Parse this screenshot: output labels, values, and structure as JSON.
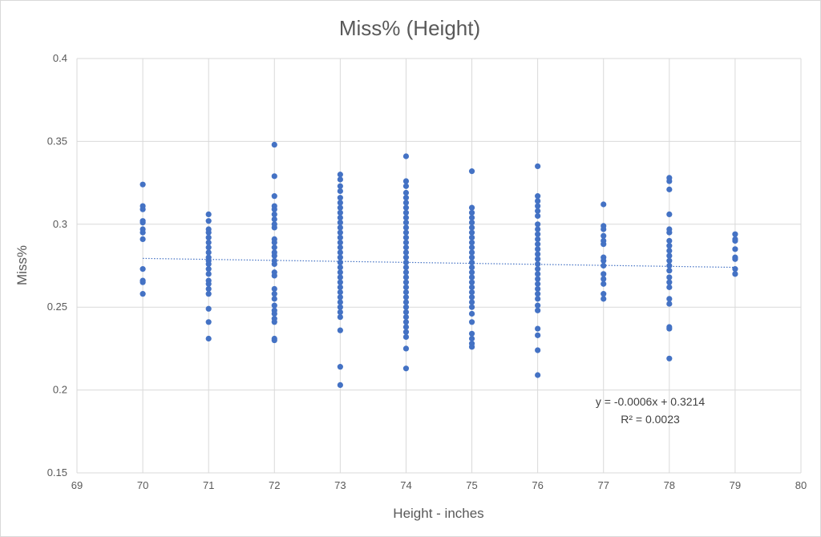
{
  "chart_data": {
    "type": "scatter",
    "title": "Miss% (Height)",
    "xlabel": "Height - inches",
    "ylabel": "Miss%",
    "xlim": [
      69,
      80
    ],
    "ylim": [
      0.15,
      0.4
    ],
    "xticks": [
      "69",
      "70",
      "71",
      "72",
      "73",
      "74",
      "75",
      "76",
      "77",
      "78",
      "79",
      "80"
    ],
    "yticks": [
      "0.15",
      "0.2",
      "0.25",
      "0.3",
      "0.35",
      "0.4"
    ],
    "grid": true,
    "point_color": "#4472C4",
    "trendline": {
      "type": "linear",
      "slope": -0.0006,
      "intercept": 0.3214,
      "equation_label": "y = -0.0006x + 0.3214",
      "r2_label": "R² = 0.0023",
      "color": "#4472C4",
      "style": "dotted"
    },
    "series": [
      {
        "points": [
          [
            70,
            0.324
          ],
          [
            70,
            0.311
          ],
          [
            70,
            0.309
          ],
          [
            70,
            0.302
          ],
          [
            70,
            0.301
          ],
          [
            70,
            0.297
          ],
          [
            70,
            0.295
          ],
          [
            70,
            0.291
          ],
          [
            70,
            0.273
          ],
          [
            70,
            0.266
          ],
          [
            70,
            0.265
          ],
          [
            70,
            0.258
          ],
          [
            71,
            0.306
          ],
          [
            71,
            0.302
          ],
          [
            71,
            0.297
          ],
          [
            71,
            0.295
          ],
          [
            71,
            0.292
          ],
          [
            71,
            0.289
          ],
          [
            71,
            0.286
          ],
          [
            71,
            0.283
          ],
          [
            71,
            0.28
          ],
          [
            71,
            0.278
          ],
          [
            71,
            0.276
          ],
          [
            71,
            0.273
          ],
          [
            71,
            0.27
          ],
          [
            71,
            0.266
          ],
          [
            71,
            0.264
          ],
          [
            71,
            0.261
          ],
          [
            71,
            0.258
          ],
          [
            71,
            0.249
          ],
          [
            71,
            0.241
          ],
          [
            71,
            0.231
          ],
          [
            72,
            0.348
          ],
          [
            72,
            0.329
          ],
          [
            72,
            0.317
          ],
          [
            72,
            0.311
          ],
          [
            72,
            0.309
          ],
          [
            72,
            0.306
          ],
          [
            72,
            0.303
          ],
          [
            72,
            0.3
          ],
          [
            72,
            0.298
          ],
          [
            72,
            0.291
          ],
          [
            72,
            0.289
          ],
          [
            72,
            0.286
          ],
          [
            72,
            0.283
          ],
          [
            72,
            0.281
          ],
          [
            72,
            0.278
          ],
          [
            72,
            0.276
          ],
          [
            72,
            0.271
          ],
          [
            72,
            0.269
          ],
          [
            72,
            0.261
          ],
          [
            72,
            0.258
          ],
          [
            72,
            0.255
          ],
          [
            72,
            0.251
          ],
          [
            72,
            0.248
          ],
          [
            72,
            0.246
          ],
          [
            72,
            0.243
          ],
          [
            72,
            0.241
          ],
          [
            72,
            0.231
          ],
          [
            72,
            0.23
          ],
          [
            73,
            0.33
          ],
          [
            73,
            0.327
          ],
          [
            73,
            0.323
          ],
          [
            73,
            0.32
          ],
          [
            73,
            0.316
          ],
          [
            73,
            0.313
          ],
          [
            73,
            0.31
          ],
          [
            73,
            0.307
          ],
          [
            73,
            0.304
          ],
          [
            73,
            0.301
          ],
          [
            73,
            0.298
          ],
          [
            73,
            0.295
          ],
          [
            73,
            0.292
          ],
          [
            73,
            0.289
          ],
          [
            73,
            0.286
          ],
          [
            73,
            0.283
          ],
          [
            73,
            0.28
          ],
          [
            73,
            0.277
          ],
          [
            73,
            0.274
          ],
          [
            73,
            0.271
          ],
          [
            73,
            0.268
          ],
          [
            73,
            0.265
          ],
          [
            73,
            0.262
          ],
          [
            73,
            0.259
          ],
          [
            73,
            0.256
          ],
          [
            73,
            0.253
          ],
          [
            73,
            0.25
          ],
          [
            73,
            0.247
          ],
          [
            73,
            0.244
          ],
          [
            73,
            0.236
          ],
          [
            73,
            0.214
          ],
          [
            73,
            0.203
          ],
          [
            74,
            0.341
          ],
          [
            74,
            0.326
          ],
          [
            74,
            0.323
          ],
          [
            74,
            0.319
          ],
          [
            74,
            0.316
          ],
          [
            74,
            0.313
          ],
          [
            74,
            0.31
          ],
          [
            74,
            0.307
          ],
          [
            74,
            0.304
          ],
          [
            74,
            0.301
          ],
          [
            74,
            0.298
          ],
          [
            74,
            0.295
          ],
          [
            74,
            0.292
          ],
          [
            74,
            0.289
          ],
          [
            74,
            0.286
          ],
          [
            74,
            0.283
          ],
          [
            74,
            0.28
          ],
          [
            74,
            0.277
          ],
          [
            74,
            0.274
          ],
          [
            74,
            0.271
          ],
          [
            74,
            0.268
          ],
          [
            74,
            0.265
          ],
          [
            74,
            0.262
          ],
          [
            74,
            0.259
          ],
          [
            74,
            0.256
          ],
          [
            74,
            0.253
          ],
          [
            74,
            0.25
          ],
          [
            74,
            0.247
          ],
          [
            74,
            0.244
          ],
          [
            74,
            0.241
          ],
          [
            74,
            0.238
          ],
          [
            74,
            0.235
          ],
          [
            74,
            0.232
          ],
          [
            74,
            0.225
          ],
          [
            74,
            0.213
          ],
          [
            75,
            0.332
          ],
          [
            75,
            0.31
          ],
          [
            75,
            0.307
          ],
          [
            75,
            0.304
          ],
          [
            75,
            0.301
          ],
          [
            75,
            0.298
          ],
          [
            75,
            0.295
          ],
          [
            75,
            0.292
          ],
          [
            75,
            0.289
          ],
          [
            75,
            0.286
          ],
          [
            75,
            0.283
          ],
          [
            75,
            0.28
          ],
          [
            75,
            0.277
          ],
          [
            75,
            0.274
          ],
          [
            75,
            0.271
          ],
          [
            75,
            0.268
          ],
          [
            75,
            0.265
          ],
          [
            75,
            0.262
          ],
          [
            75,
            0.259
          ],
          [
            75,
            0.256
          ],
          [
            75,
            0.253
          ],
          [
            75,
            0.25
          ],
          [
            75,
            0.246
          ],
          [
            75,
            0.241
          ],
          [
            75,
            0.234
          ],
          [
            75,
            0.231
          ],
          [
            75,
            0.228
          ],
          [
            75,
            0.226
          ],
          [
            76,
            0.335
          ],
          [
            76,
            0.317
          ],
          [
            76,
            0.314
          ],
          [
            76,
            0.311
          ],
          [
            76,
            0.308
          ],
          [
            76,
            0.305
          ],
          [
            76,
            0.3
          ],
          [
            76,
            0.297
          ],
          [
            76,
            0.294
          ],
          [
            76,
            0.291
          ],
          [
            76,
            0.288
          ],
          [
            76,
            0.285
          ],
          [
            76,
            0.282
          ],
          [
            76,
            0.279
          ],
          [
            76,
            0.276
          ],
          [
            76,
            0.273
          ],
          [
            76,
            0.27
          ],
          [
            76,
            0.267
          ],
          [
            76,
            0.264
          ],
          [
            76,
            0.261
          ],
          [
            76,
            0.258
          ],
          [
            76,
            0.255
          ],
          [
            76,
            0.251
          ],
          [
            76,
            0.248
          ],
          [
            76,
            0.237
          ],
          [
            76,
            0.233
          ],
          [
            76,
            0.224
          ],
          [
            76,
            0.209
          ],
          [
            77,
            0.312
          ],
          [
            77,
            0.299
          ],
          [
            77,
            0.297
          ],
          [
            77,
            0.293
          ],
          [
            77,
            0.29
          ],
          [
            77,
            0.288
          ],
          [
            77,
            0.28
          ],
          [
            77,
            0.278
          ],
          [
            77,
            0.275
          ],
          [
            77,
            0.27
          ],
          [
            77,
            0.267
          ],
          [
            77,
            0.264
          ],
          [
            77,
            0.258
          ],
          [
            77,
            0.255
          ],
          [
            78,
            0.328
          ],
          [
            78,
            0.326
          ],
          [
            78,
            0.321
          ],
          [
            78,
            0.306
          ],
          [
            78,
            0.297
          ],
          [
            78,
            0.295
          ],
          [
            78,
            0.29
          ],
          [
            78,
            0.287
          ],
          [
            78,
            0.284
          ],
          [
            78,
            0.281
          ],
          [
            78,
            0.278
          ],
          [
            78,
            0.275
          ],
          [
            78,
            0.272
          ],
          [
            78,
            0.268
          ],
          [
            78,
            0.265
          ],
          [
            78,
            0.262
          ],
          [
            78,
            0.255
          ],
          [
            78,
            0.252
          ],
          [
            78,
            0.238
          ],
          [
            78,
            0.237
          ],
          [
            78,
            0.219
          ],
          [
            79,
            0.294
          ],
          [
            79,
            0.291
          ],
          [
            79,
            0.29
          ],
          [
            79,
            0.285
          ],
          [
            79,
            0.28
          ],
          [
            79,
            0.279
          ],
          [
            79,
            0.273
          ],
          [
            79,
            0.27
          ]
        ]
      }
    ]
  }
}
